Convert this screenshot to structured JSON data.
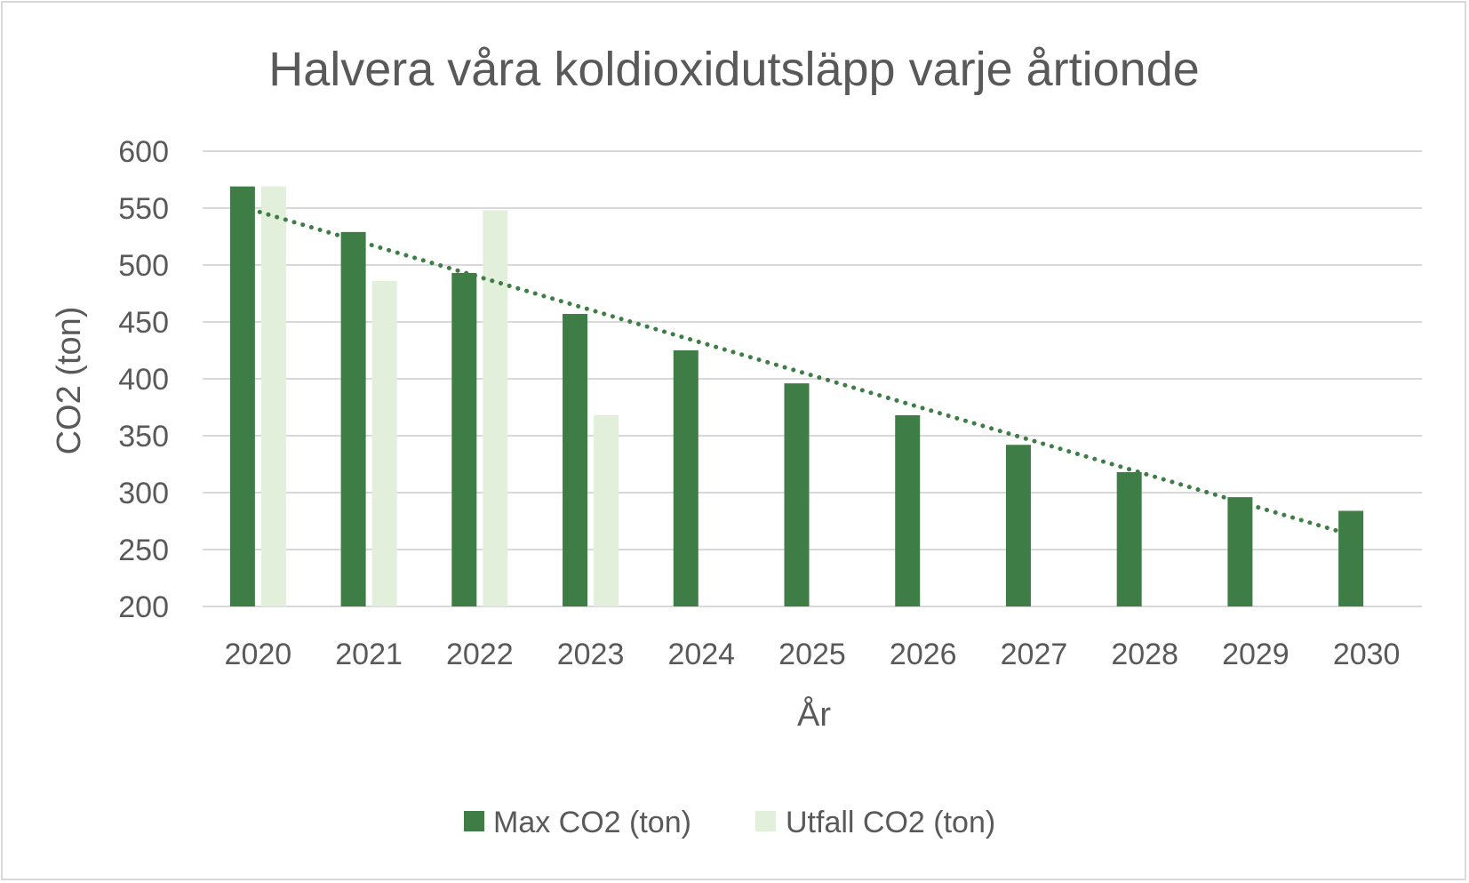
{
  "chart_data": {
    "type": "bar",
    "title": "Halvera våra koldioxidutsläpp varje årtionde",
    "xlabel": "År",
    "ylabel": "CO2 (ton)",
    "ylim": [
      200,
      600
    ],
    "yticks": [
      200,
      250,
      300,
      350,
      400,
      450,
      500,
      550,
      600
    ],
    "grid": true,
    "legend_position": "bottom",
    "categories": [
      "2020",
      "2021",
      "2022",
      "2023",
      "2024",
      "2025",
      "2026",
      "2027",
      "2028",
      "2029",
      "2030"
    ],
    "series": [
      {
        "name": "Max CO2 (ton)",
        "color": "#3e7d46",
        "values": [
          569,
          529,
          493,
          457,
          425,
          396,
          368,
          342,
          318,
          296,
          284
        ]
      },
      {
        "name": "Utfall CO2 (ton)",
        "color": "#e2efda",
        "values": [
          569,
          486,
          548,
          368,
          null,
          null,
          null,
          null,
          null,
          null,
          null
        ]
      }
    ],
    "trendline": {
      "series": "Max CO2 (ton)",
      "style": "dotted",
      "color": "#3e7d46",
      "type": "linear"
    }
  }
}
